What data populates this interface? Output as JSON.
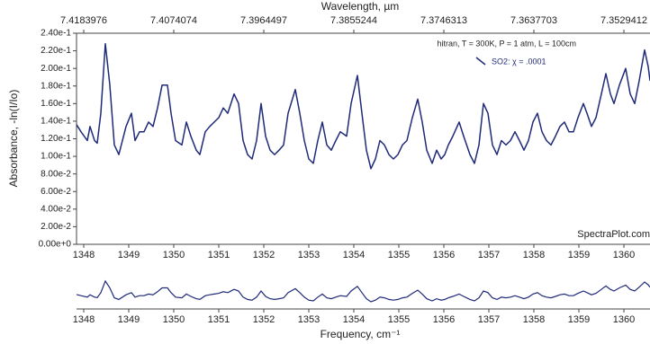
{
  "chart_data": {
    "type": "line",
    "x2label": "Wavelength, µm",
    "ylabel": "Absorbance, -ln(I/Io)",
    "xlabel": "Frequency, cm⁻¹",
    "annotation": "hitran, T = 300K, P = 1 atm, L = 100cm",
    "watermark": "SpectraPlot.com",
    "xlim": [
      1347.84,
      1360.58
    ],
    "ylim": [
      0,
      0.24
    ],
    "xticks": [
      1348,
      1349,
      1350,
      1351,
      1352,
      1353,
      1354,
      1355,
      1356,
      1357,
      1358,
      1359,
      1360
    ],
    "x2ticks": [
      7.4183976,
      7.4074074,
      7.3964497,
      7.3855244,
      7.3746313,
      7.3637703,
      7.3529412
    ],
    "yticks": [
      {
        "value": 0,
        "label": "0.00e+0"
      },
      {
        "value": 0.02,
        "label": "2.00e-2"
      },
      {
        "value": 0.04,
        "label": "4.00e-2"
      },
      {
        "value": 0.06,
        "label": "6.00e-2"
      },
      {
        "value": 0.08,
        "label": "8.00e-2"
      },
      {
        "value": 0.1,
        "label": "1.00e-1"
      },
      {
        "value": 0.12,
        "label": "1.20e-1"
      },
      {
        "value": 0.14,
        "label": "1.40e-1"
      },
      {
        "value": 0.16,
        "label": "1.60e-1"
      },
      {
        "value": 0.18,
        "label": "1.80e-1"
      },
      {
        "value": 0.2,
        "label": "2.00e-1"
      },
      {
        "value": 0.22,
        "label": "2.20e-1"
      },
      {
        "value": 0.24,
        "label": "2.40e-1"
      }
    ],
    "x": [
      1347.84,
      1347.94,
      1348.08,
      1348.14,
      1348.24,
      1348.3,
      1348.38,
      1348.48,
      1348.58,
      1348.68,
      1348.78,
      1348.94,
      1349.06,
      1349.14,
      1349.24,
      1349.34,
      1349.44,
      1349.54,
      1349.64,
      1349.74,
      1349.86,
      1349.94,
      1350.04,
      1350.18,
      1350.28,
      1350.38,
      1350.5,
      1350.58,
      1350.7,
      1350.8,
      1350.9,
      1351.0,
      1351.1,
      1351.2,
      1351.34,
      1351.44,
      1351.54,
      1351.64,
      1351.74,
      1351.84,
      1351.94,
      1352.04,
      1352.14,
      1352.24,
      1352.34,
      1352.44,
      1352.54,
      1352.7,
      1352.8,
      1352.9,
      1353.0,
      1353.1,
      1353.2,
      1353.3,
      1353.4,
      1353.5,
      1353.6,
      1353.7,
      1353.84,
      1353.94,
      1354.08,
      1354.18,
      1354.28,
      1354.38,
      1354.48,
      1354.58,
      1354.68,
      1354.78,
      1354.88,
      1354.98,
      1355.08,
      1355.18,
      1355.3,
      1355.42,
      1355.52,
      1355.62,
      1355.74,
      1355.84,
      1355.94,
      1356.02,
      1356.1,
      1356.2,
      1356.34,
      1356.44,
      1356.58,
      1356.68,
      1356.78,
      1356.88,
      1356.98,
      1357.08,
      1357.18,
      1357.28,
      1357.38,
      1357.48,
      1357.58,
      1357.68,
      1357.78,
      1357.88,
      1357.98,
      1358.08,
      1358.18,
      1358.28,
      1358.38,
      1358.48,
      1358.58,
      1358.68,
      1358.78,
      1358.88,
      1358.98,
      1359.1,
      1359.18,
      1359.28,
      1359.38,
      1359.5,
      1359.6,
      1359.7,
      1359.78,
      1359.9,
      1360.04,
      1360.14,
      1360.24,
      1360.34,
      1360.46,
      1360.54,
      1360.58
    ],
    "series": [
      {
        "name": "SO2: χ = .0001",
        "color": "#1f2a78",
        "values": [
          0.136,
          0.128,
          0.118,
          0.134,
          0.118,
          0.115,
          0.149,
          0.228,
          0.181,
          0.113,
          0.102,
          0.134,
          0.149,
          0.118,
          0.128,
          0.128,
          0.139,
          0.134,
          0.155,
          0.181,
          0.181,
          0.149,
          0.118,
          0.113,
          0.139,
          0.123,
          0.107,
          0.102,
          0.128,
          0.134,
          0.139,
          0.144,
          0.155,
          0.149,
          0.171,
          0.16,
          0.118,
          0.102,
          0.097,
          0.118,
          0.16,
          0.123,
          0.107,
          0.102,
          0.107,
          0.113,
          0.149,
          0.176,
          0.149,
          0.118,
          0.097,
          0.092,
          0.118,
          0.139,
          0.113,
          0.107,
          0.118,
          0.128,
          0.123,
          0.16,
          0.192,
          0.149,
          0.107,
          0.086,
          0.097,
          0.118,
          0.113,
          0.102,
          0.097,
          0.102,
          0.113,
          0.118,
          0.144,
          0.165,
          0.139,
          0.107,
          0.092,
          0.107,
          0.097,
          0.102,
          0.113,
          0.123,
          0.139,
          0.123,
          0.102,
          0.092,
          0.113,
          0.16,
          0.149,
          0.113,
          0.102,
          0.118,
          0.113,
          0.118,
          0.128,
          0.118,
          0.107,
          0.118,
          0.139,
          0.149,
          0.128,
          0.118,
          0.113,
          0.123,
          0.134,
          0.139,
          0.128,
          0.128,
          0.144,
          0.16,
          0.149,
          0.134,
          0.144,
          0.171,
          0.194,
          0.171,
          0.16,
          0.181,
          0.2,
          0.171,
          0.16,
          0.186,
          0.221,
          0.202,
          0.186
        ]
      }
    ]
  }
}
